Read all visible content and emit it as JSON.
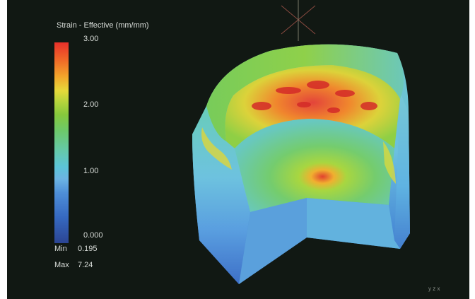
{
  "legend": {
    "title": "Strain - Effective (mm/mm)",
    "ticks": [
      "3.00",
      "2.00",
      "1.00",
      "0.000"
    ],
    "min_label": "Min",
    "min_value": "0.195",
    "max_label": "Max",
    "max_value": "7.24"
  },
  "triad": {
    "mini_label": "y z x"
  },
  "colors": {
    "background": "#111813",
    "high": "#e8302a",
    "mid": "#86c83c",
    "low": "#2b4593"
  }
}
